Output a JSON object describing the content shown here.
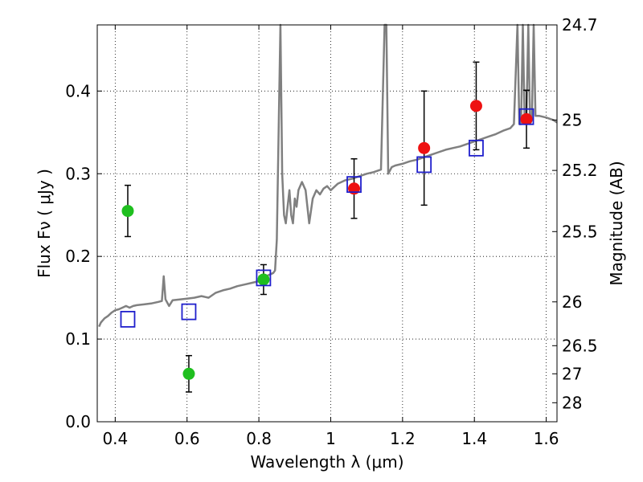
{
  "chart_data": {
    "type": "scatter",
    "title": "",
    "xlabel": "Wavelength  λ (μm)",
    "ylabel": "Flux  Fν  ( μJy )",
    "y2label": "Magnitude (AB)",
    "xlim": [
      0.35,
      1.63
    ],
    "ylim": [
      0.0,
      0.48
    ],
    "grid": true,
    "x_ticks": [
      0.4,
      0.6,
      0.8,
      1.0,
      1.2,
      1.4,
      1.6
    ],
    "x_tick_labels": [
      "0.4",
      "0.6",
      "0.8",
      "1",
      "1.2",
      "1.4",
      "1.6"
    ],
    "y_ticks": [
      0.0,
      0.1,
      0.2,
      0.3,
      0.4
    ],
    "y_tick_labels": [
      "0.0",
      "0.1",
      "0.2",
      "0.3",
      "0.4"
    ],
    "y2_ticks": [
      {
        "label": "24.7",
        "flux": 0.48
      },
      {
        "label": "25",
        "flux": 0.365
      },
      {
        "label": "25.2",
        "flux": 0.304
      },
      {
        "label": "25.5",
        "flux": 0.23
      },
      {
        "label": "26",
        "flux": 0.145
      },
      {
        "label": "26.5",
        "flux": 0.092
      },
      {
        "label": "27",
        "flux": 0.058
      },
      {
        "label": "28",
        "flux": 0.023
      }
    ],
    "series": [
      {
        "marker": "line",
        "color": "#808080",
        "x": [
          0.355,
          0.36,
          0.37,
          0.38,
          0.39,
          0.4,
          0.41,
          0.42,
          0.43,
          0.44,
          0.45,
          0.46,
          0.48,
          0.5,
          0.52,
          0.53,
          0.535,
          0.54,
          0.55,
          0.56,
          0.58,
          0.6,
          0.62,
          0.64,
          0.66,
          0.68,
          0.7,
          0.72,
          0.74,
          0.76,
          0.78,
          0.8,
          0.82,
          0.84,
          0.845,
          0.85,
          0.86,
          0.865,
          0.87,
          0.875,
          0.88,
          0.885,
          0.89,
          0.895,
          0.9,
          0.905,
          0.91,
          0.92,
          0.93,
          0.94,
          0.95,
          0.96,
          0.97,
          0.98,
          0.99,
          1.0,
          1.02,
          1.04,
          1.06,
          1.08,
          1.1,
          1.12,
          1.14,
          1.15,
          1.155,
          1.16,
          1.17,
          1.18,
          1.2,
          1.22,
          1.24,
          1.26,
          1.28,
          1.3,
          1.32,
          1.34,
          1.36,
          1.38,
          1.4,
          1.42,
          1.44,
          1.46,
          1.48,
          1.5,
          1.51,
          1.52,
          1.525,
          1.53,
          1.535,
          1.54,
          1.545,
          1.55,
          1.555,
          1.56,
          1.565,
          1.57,
          1.58,
          1.6,
          1.62,
          1.63
        ],
        "values": [
          0.115,
          0.12,
          0.125,
          0.128,
          0.132,
          0.135,
          0.136,
          0.138,
          0.14,
          0.138,
          0.14,
          0.141,
          0.142,
          0.143,
          0.145,
          0.146,
          0.176,
          0.148,
          0.14,
          0.147,
          0.148,
          0.149,
          0.15,
          0.152,
          0.15,
          0.156,
          0.159,
          0.161,
          0.164,
          0.166,
          0.168,
          0.17,
          0.176,
          0.18,
          0.183,
          0.22,
          0.48,
          0.3,
          0.25,
          0.24,
          0.26,
          0.28,
          0.25,
          0.24,
          0.27,
          0.26,
          0.28,
          0.29,
          0.28,
          0.24,
          0.27,
          0.28,
          0.275,
          0.282,
          0.285,
          0.28,
          0.288,
          0.292,
          0.294,
          0.297,
          0.3,
          0.302,
          0.305,
          0.48,
          0.48,
          0.3,
          0.308,
          0.31,
          0.312,
          0.315,
          0.317,
          0.32,
          0.323,
          0.326,
          0.329,
          0.331,
          0.333,
          0.336,
          0.339,
          0.342,
          0.345,
          0.348,
          0.352,
          0.355,
          0.36,
          0.48,
          0.36,
          0.36,
          0.48,
          0.36,
          0.37,
          0.48,
          0.36,
          0.365,
          0.48,
          0.37,
          0.37,
          0.368,
          0.365,
          0.362
        ]
      },
      {
        "marker": "circle",
        "color": "#1fbf1f",
        "x": [
          0.435,
          0.605,
          0.813
        ],
        "values": [
          0.255,
          0.058,
          0.172
        ],
        "err": [
          0.031,
          0.022,
          0.018
        ]
      },
      {
        "marker": "circle",
        "color": "#ee1111",
        "x": [
          1.065,
          1.26,
          1.405,
          1.545
        ],
        "values": [
          0.282,
          0.331,
          0.382,
          0.366
        ],
        "err": [
          0.036,
          0.069,
          0.053,
          0.035
        ]
      },
      {
        "marker": "square",
        "color": "#1f1fcc",
        "x": [
          0.435,
          0.605,
          0.813,
          1.065,
          1.26,
          1.405,
          1.545
        ],
        "values": [
          0.124,
          0.133,
          0.174,
          0.287,
          0.311,
          0.331,
          0.369
        ]
      }
    ]
  }
}
